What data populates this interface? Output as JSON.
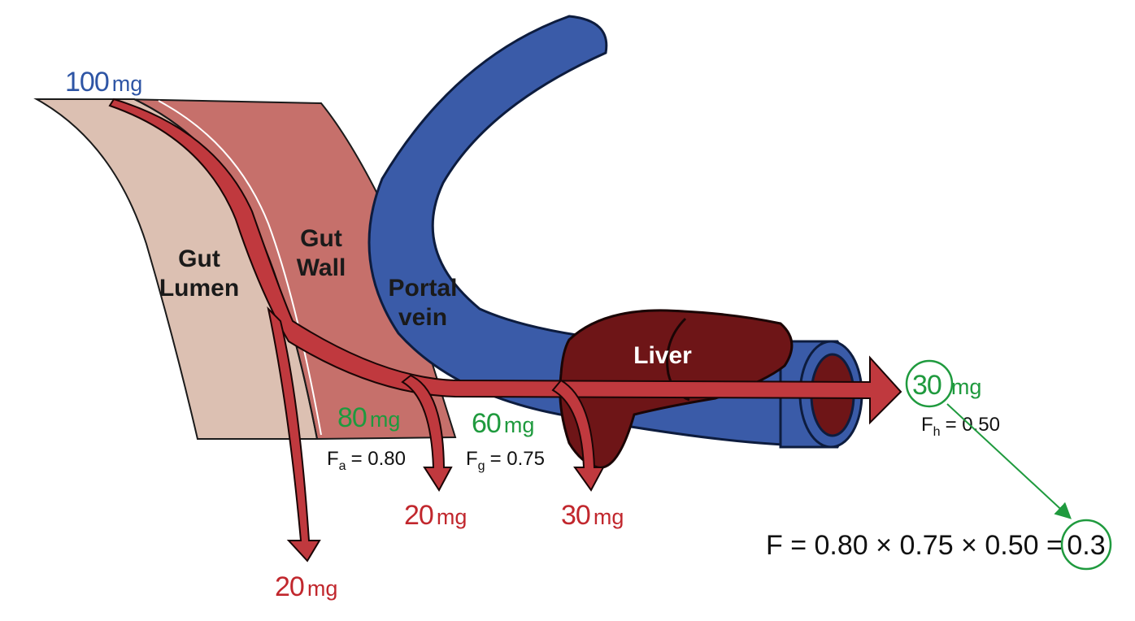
{
  "colors": {
    "blue_text": "#2E55A5",
    "red_text": "#C1272D",
    "green_text": "#1F9A3E",
    "lumen_fill": "#DCC0B2",
    "wall_fill": "#C6706B",
    "vein_fill": "#3A5BA8",
    "liver_fill": "#6E1517",
    "flow_arrow": "#C0393E"
  },
  "dose": {
    "value": "100",
    "unit": "mg"
  },
  "tissues": {
    "lumen_line1": "Gut",
    "lumen_line2": "Lumen",
    "wall_line1": "Gut",
    "wall_line2": "Wall",
    "vein_line1": "Portal",
    "vein_line2": "vein",
    "liver": "Liver"
  },
  "after_absorption": {
    "value": "80",
    "unit": "mg",
    "fraction_symbol": "F",
    "fraction_sub": "a",
    "fraction_value": "= 0.80"
  },
  "after_gut_wall": {
    "value": "60",
    "unit": "mg",
    "fraction_symbol": "F",
    "fraction_sub": "g",
    "fraction_value": "= 0.75"
  },
  "after_liver": {
    "value": "30",
    "unit": "mg",
    "fraction_symbol": "F",
    "fraction_sub": "h",
    "fraction_value": "= 0.50"
  },
  "losses": {
    "lumen": {
      "value": "20",
      "unit": "mg"
    },
    "wall": {
      "value": "20",
      "unit": "mg"
    },
    "liver": {
      "value": "30",
      "unit": "mg"
    }
  },
  "formula": {
    "text": "F = 0.80 × 0.75 × 0.50 =",
    "result": "0.3"
  }
}
